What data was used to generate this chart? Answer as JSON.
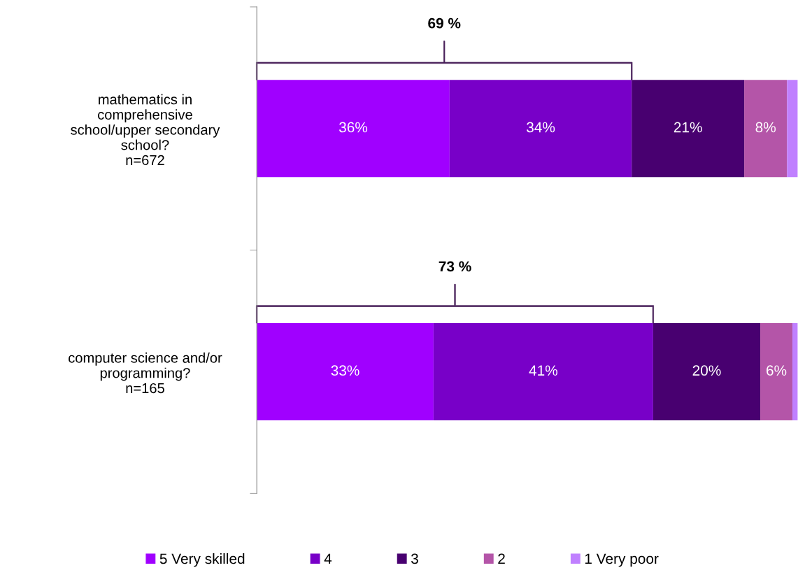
{
  "chart_data": {
    "type": "bar",
    "orientation": "horizontal",
    "stacked": true,
    "categories": [
      "mathematics in\ncomprehensive\nschool/upper secondary\nschool?\nn=672",
      "computer science and/or\nprogramming?\nn=165"
    ],
    "series": [
      {
        "name": "5 Very skilled",
        "color": "#a000ff",
        "values": [
          36,
          33
        ],
        "value_labels": [
          "36%",
          "33%"
        ]
      },
      {
        "name": "4",
        "color": "#7800c8",
        "values": [
          34,
          41
        ],
        "value_labels": [
          "34%",
          "41%"
        ]
      },
      {
        "name": "3",
        "color": "#480070",
        "values": [
          21,
          20
        ],
        "value_labels": [
          "21%",
          "20%"
        ]
      },
      {
        "name": "2",
        "color": "#b455a8",
        "values": [
          8,
          6
        ],
        "value_labels": [
          "8%",
          "6%"
        ]
      },
      {
        "name": "1 Very poor",
        "color": "#c080ff",
        "values": [
          2,
          1
        ],
        "value_labels": [
          null,
          null
        ]
      }
    ],
    "annotations": [
      "69 %",
      "73 %"
    ],
    "legend": "bottom",
    "grid": false
  }
}
